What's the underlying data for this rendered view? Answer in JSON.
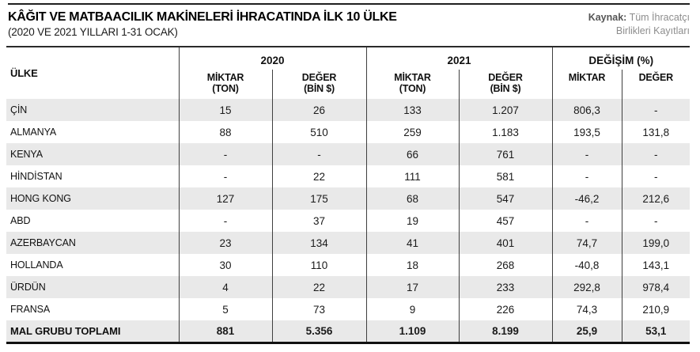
{
  "page": {
    "title": "KÂĞIT VE MATBAACILIK MAKİNELERİ İHRACATINDA İLK 10 ÜLKE",
    "subtitle": "(2020 VE 2021 YILLARI 1-31 OCAK)",
    "source_label": "Kaynak:",
    "source_line1": "Tüm İhracatçı",
    "source_line2": "Birlikleri Kayıtları"
  },
  "colors": {
    "row_alt": "#e9e9e9",
    "line_dark": "#3f3f3f",
    "rule_black": "#111111",
    "source_gray": "#8d8d8d"
  },
  "table": {
    "header": {
      "country": "ÜLKE",
      "group_2020": "2020",
      "group_2021": "2021",
      "group_change": "DEĞİŞİM (%)",
      "miktar_line1": "MİKTAR",
      "miktar_line2": "(TON)",
      "deger_line1": "DEĞER",
      "deger_line2": "(BİN $)",
      "change_miktar": "MİKTAR",
      "change_deger": "DEĞER"
    },
    "rows": [
      {
        "country": "ÇİN",
        "q2020": "15",
        "v2020": "26",
        "q2021": "133",
        "v2021": "1.207",
        "cq": "806,3",
        "cv": "-"
      },
      {
        "country": "ALMANYA",
        "q2020": "88",
        "v2020": "510",
        "q2021": "259",
        "v2021": "1.183",
        "cq": "193,5",
        "cv": "131,8"
      },
      {
        "country": "KENYA",
        "q2020": "-",
        "v2020": "-",
        "q2021": "66",
        "v2021": "761",
        "cq": "-",
        "cv": "-"
      },
      {
        "country": "HİNDİSTAN",
        "q2020": "-",
        "v2020": "22",
        "q2021": "111",
        "v2021": "581",
        "cq": "-",
        "cv": "-"
      },
      {
        "country": "HONG KONG",
        "q2020": "127",
        "v2020": "175",
        "q2021": "68",
        "v2021": "547",
        "cq": "-46,2",
        "cv": "212,6"
      },
      {
        "country": "ABD",
        "q2020": "-",
        "v2020": "37",
        "q2021": "19",
        "v2021": "457",
        "cq": "-",
        "cv": "-"
      },
      {
        "country": "AZERBAYCAN",
        "q2020": "23",
        "v2020": "134",
        "q2021": "41",
        "v2021": "401",
        "cq": "74,7",
        "cv": "199,0"
      },
      {
        "country": "HOLLANDA",
        "q2020": "30",
        "v2020": "110",
        "q2021": "18",
        "v2021": "268",
        "cq": "-40,8",
        "cv": "143,1"
      },
      {
        "country": "ÜRDÜN",
        "q2020": "4",
        "v2020": "22",
        "q2021": "17",
        "v2021": "233",
        "cq": "292,8",
        "cv": "978,4"
      },
      {
        "country": "FRANSA",
        "q2020": "5",
        "v2020": "73",
        "q2021": "9",
        "v2021": "226",
        "cq": "74,3",
        "cv": "210,9"
      }
    ],
    "total": {
      "country": "MAL GRUBU TOPLAMI",
      "q2020": "881",
      "v2020": "5.356",
      "q2021": "1.109",
      "v2021": "8.199",
      "cq": "25,9",
      "cv": "53,1"
    }
  },
  "chart_data": {
    "type": "table",
    "title": "KÂĞIT VE MATBAACILIK MAKİNELERİ İHRACATINDA İLK 10 ÜLKE",
    "subtitle": "(2020 VE 2021 YILLARI 1-31 OCAK)",
    "source": "Kaynak: Tüm İhracatçı Birlikleri Kayıtları",
    "columns": [
      "ÜLKE",
      "2020 MİKTAR (TON)",
      "2020 DEĞER (BİN $)",
      "2021 MİKTAR (TON)",
      "2021 DEĞER (BİN $)",
      "DEĞİŞİM MİKTAR (%)",
      "DEĞİŞİM DEĞER (%)"
    ],
    "rows": [
      [
        "ÇİN",
        15,
        26,
        133,
        1207,
        806.3,
        null
      ],
      [
        "ALMANYA",
        88,
        510,
        259,
        1183,
        193.5,
        131.8
      ],
      [
        "KENYA",
        null,
        null,
        66,
        761,
        null,
        null
      ],
      [
        "HİNDİSTAN",
        null,
        22,
        111,
        581,
        null,
        null
      ],
      [
        "HONG KONG",
        127,
        175,
        68,
        547,
        -46.2,
        212.6
      ],
      [
        "ABD",
        null,
        37,
        19,
        457,
        null,
        null
      ],
      [
        "AZERBAYCAN",
        23,
        134,
        41,
        401,
        74.7,
        199.0
      ],
      [
        "HOLLANDA",
        30,
        110,
        18,
        268,
        -40.8,
        143.1
      ],
      [
        "ÜRDÜN",
        4,
        22,
        17,
        233,
        292.8,
        978.4
      ],
      [
        "FRANSA",
        5,
        73,
        9,
        226,
        74.3,
        210.9
      ],
      [
        "MAL GRUBU TOPLAMI",
        881,
        5356,
        1109,
        8199,
        25.9,
        53.1
      ]
    ]
  }
}
